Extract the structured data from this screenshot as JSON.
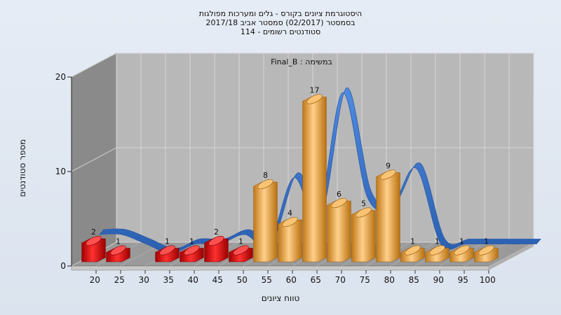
{
  "header": {
    "title_line1": "היסטוגרמת ציונים בקורס - גלים ומערכות מפולגות",
    "title_line2": "בסמסטר  (02/2017)  סמסטר אביב 2017/18",
    "title_line3": "114 - סטודנטים רשומים"
  },
  "colors": {
    "red_bar": "#e01010",
    "orange_bar": "#e8a43c",
    "curve": "#3a78d0",
    "wall_back": "#b8b8b8",
    "wall_left": "#8a8a8a",
    "floor": "#9a9a9a"
  },
  "chart_data": {
    "type": "bar",
    "title": "היסטוגרמת ציונים בקורס - גלים ומערכות מפולגות",
    "task_label": "Final_B : במשימה",
    "xlabel": "טווח ציונים",
    "ylabel": "מספר סטודנטים",
    "ylim": [
      0,
      20
    ],
    "yticks": [
      0,
      10,
      20
    ],
    "grid": true,
    "categories": [
      "20",
      "25",
      "30",
      "35",
      "40",
      "45",
      "50",
      "55",
      "60",
      "65",
      "70",
      "75",
      "80",
      "85",
      "90",
      "95",
      "100"
    ],
    "values": [
      2,
      1,
      0,
      1,
      1,
      2,
      1,
      8,
      4,
      17,
      6,
      5,
      9,
      1,
      1,
      1,
      1
    ],
    "bar_colors": [
      "red",
      "red",
      "red",
      "red",
      "red",
      "red",
      "red",
      "orange",
      "orange",
      "orange",
      "orange",
      "orange",
      "orange",
      "orange",
      "orange",
      "orange",
      "orange"
    ],
    "value_labels": [
      "2",
      "1",
      "",
      "1",
      "1",
      "2",
      "1",
      "8",
      "4",
      "17",
      "6",
      "5",
      "9",
      "1",
      "1",
      "1",
      "1"
    ],
    "curve_label": "smoothed distribution"
  }
}
